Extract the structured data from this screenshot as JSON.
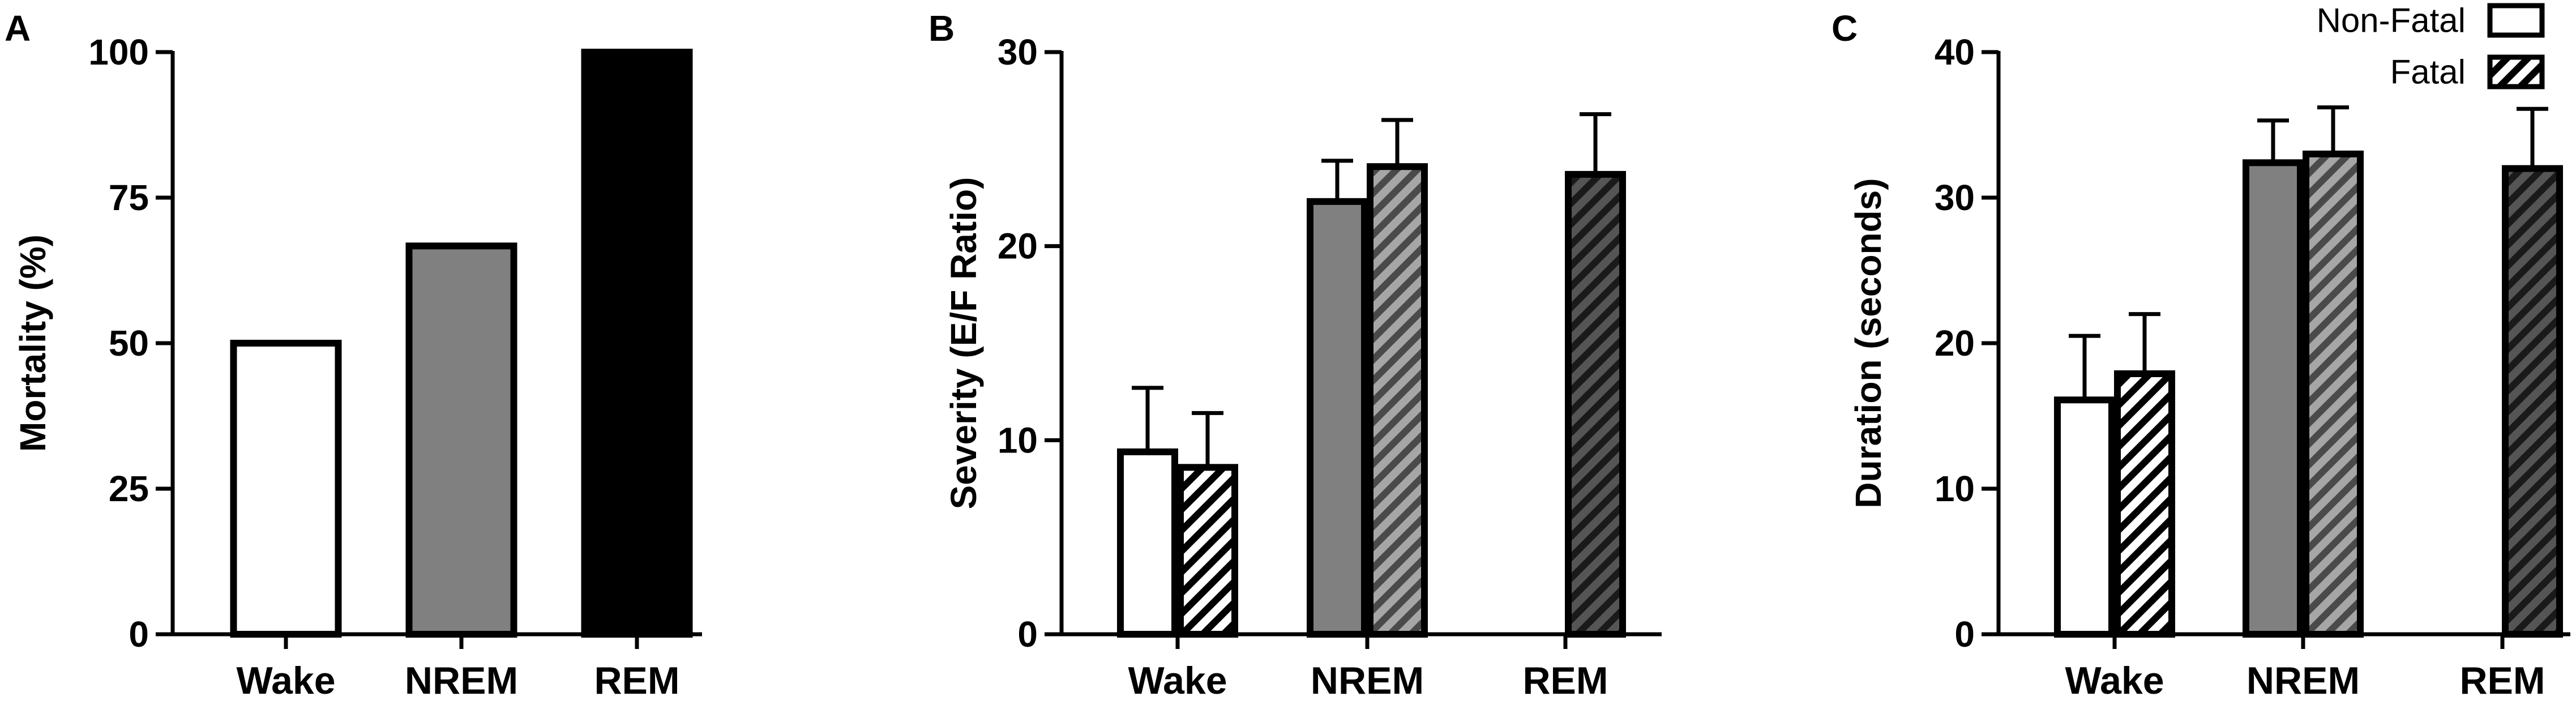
{
  "colors": {
    "wake": "#ffffff",
    "nrem": "#808080",
    "rem": "#000000",
    "rem_fatal": "#3a3a3a",
    "outline": "#000000"
  },
  "legend": [
    {
      "label": "Non-Fatal",
      "pattern": "solid"
    },
    {
      "label": "Fatal",
      "pattern": "hatched"
    }
  ],
  "chart_data": [
    {
      "panel": "A",
      "type": "bar",
      "ylabel": "Mortality (%)",
      "ylim": [
        0,
        100
      ],
      "yticks": [
        0,
        25,
        50,
        75,
        100
      ],
      "categories": [
        "Wake",
        "NREM",
        "REM"
      ],
      "values": [
        50,
        66.7,
        100
      ]
    },
    {
      "panel": "B",
      "type": "bar",
      "ylabel": "Severity (E/F  Ratio)",
      "ylim": [
        0,
        30
      ],
      "yticks": [
        0,
        10,
        20,
        30
      ],
      "categories": [
        "Wake",
        "NREM",
        "REM"
      ],
      "series": [
        {
          "name": "Non-Fatal",
          "values": [
            9.4,
            22.3,
            null
          ],
          "errors": [
            3.3,
            2.1,
            null
          ]
        },
        {
          "name": "Fatal",
          "values": [
            8.6,
            24.1,
            23.7
          ],
          "errors": [
            2.8,
            2.4,
            3.1
          ]
        }
      ]
    },
    {
      "panel": "C",
      "type": "bar",
      "ylabel": "Duration  (seconds)",
      "ylim": [
        0,
        40
      ],
      "yticks": [
        0,
        10,
        20,
        30,
        40
      ],
      "categories": [
        "Wake",
        "NREM",
        "REM"
      ],
      "series": [
        {
          "name": "Non-Fatal",
          "values": [
            16.1,
            32.4,
            null
          ],
          "errors": [
            4.4,
            2.9,
            null
          ]
        },
        {
          "name": "Fatal",
          "values": [
            17.9,
            33.0,
            32.0
          ],
          "errors": [
            4.1,
            3.2,
            4.1
          ]
        }
      ]
    }
  ]
}
